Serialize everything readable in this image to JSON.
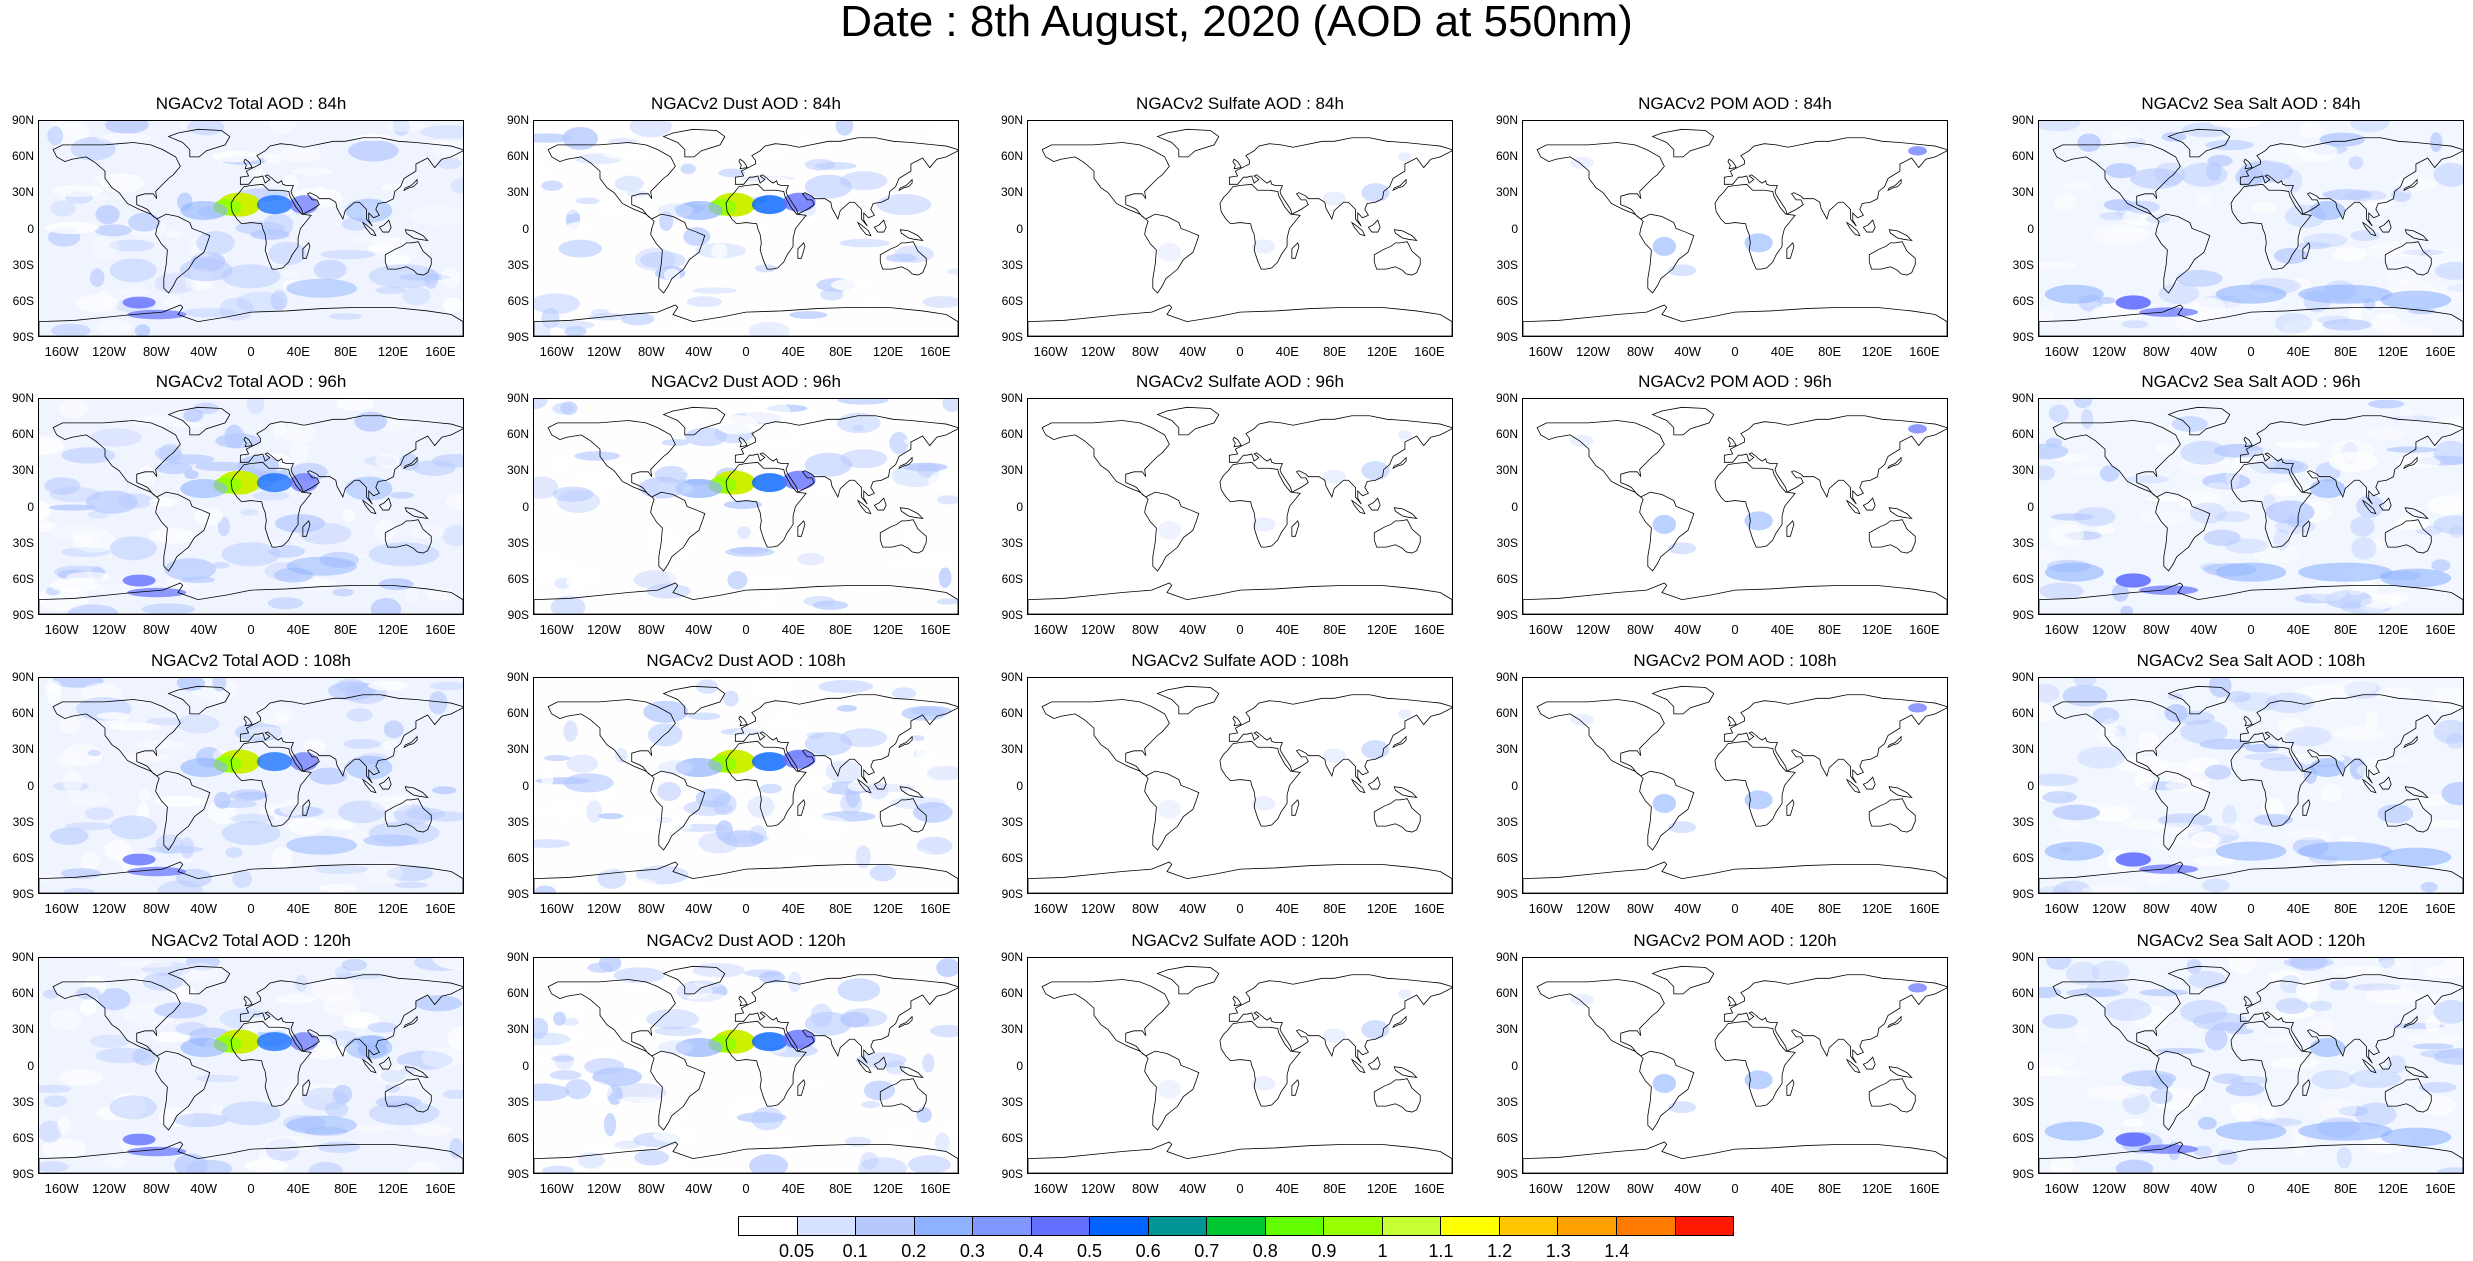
{
  "title": "Date : 8th August, 2020 (AOD at 550nm)",
  "lat_labels": [
    "90N",
    "60N",
    "30N",
    "0",
    "30S",
    "60S",
    "90S"
  ],
  "lon_labels": [
    "160W",
    "120W",
    "80W",
    "40W",
    "0",
    "40E",
    "80E",
    "120E",
    "160E"
  ],
  "panels": [
    [
      {
        "title": "NGACv2 Total AOD : 84h",
        "species": "total"
      },
      {
        "title": "NGACv2 Dust AOD : 84h",
        "species": "dust"
      },
      {
        "title": "NGACv2 Sulfate AOD : 84h",
        "species": "sulfate"
      },
      {
        "title": "NGACv2 POM AOD : 84h",
        "species": "pom"
      },
      {
        "title": "NGACv2 Sea Salt AOD : 84h",
        "species": "seasalt"
      }
    ],
    [
      {
        "title": "NGACv2 Total AOD : 96h",
        "species": "total"
      },
      {
        "title": "NGACv2 Dust AOD : 96h",
        "species": "dust"
      },
      {
        "title": "NGACv2 Sulfate AOD : 96h",
        "species": "sulfate"
      },
      {
        "title": "NGACv2 POM AOD : 96h",
        "species": "pom"
      },
      {
        "title": "NGACv2 Sea Salt AOD : 96h",
        "species": "seasalt"
      }
    ],
    [
      {
        "title": "NGACv2 Total AOD : 108h",
        "species": "total"
      },
      {
        "title": "NGACv2 Dust AOD : 108h",
        "species": "dust"
      },
      {
        "title": "NGACv2 Sulfate AOD : 108h",
        "species": "sulfate"
      },
      {
        "title": "NGACv2 POM AOD : 108h",
        "species": "pom"
      },
      {
        "title": "NGACv2 Sea Salt AOD : 108h",
        "species": "seasalt"
      }
    ],
    [
      {
        "title": "NGACv2 Total AOD : 120h",
        "species": "total"
      },
      {
        "title": "NGACv2 Dust AOD : 120h",
        "species": "dust"
      },
      {
        "title": "NGACv2 Sulfate AOD : 120h",
        "species": "sulfate"
      },
      {
        "title": "NGACv2 POM AOD : 120h",
        "species": "pom"
      },
      {
        "title": "NGACv2 Sea Salt  AOD : 120h",
        "species": "seasalt"
      }
    ]
  ],
  "colorbar": {
    "labels": [
      "0.05",
      "0.1",
      "0.2",
      "0.3",
      "0.4",
      "0.5",
      "0.6",
      "0.7",
      "0.8",
      "0.9",
      "1",
      "1.1",
      "1.2",
      "1.3",
      "1.4"
    ],
    "colors": [
      "#ffffff",
      "#d6e2ff",
      "#b5c9ff",
      "#8eb2ff",
      "#7f96ff",
      "#6370ff",
      "#0063ff",
      "#009696",
      "#00c633",
      "#63ff00",
      "#96ff00",
      "#c6ff33",
      "#ffff00",
      "#ffc600",
      "#ffa000",
      "#ff7c00",
      "#ff1900"
    ]
  }
}
